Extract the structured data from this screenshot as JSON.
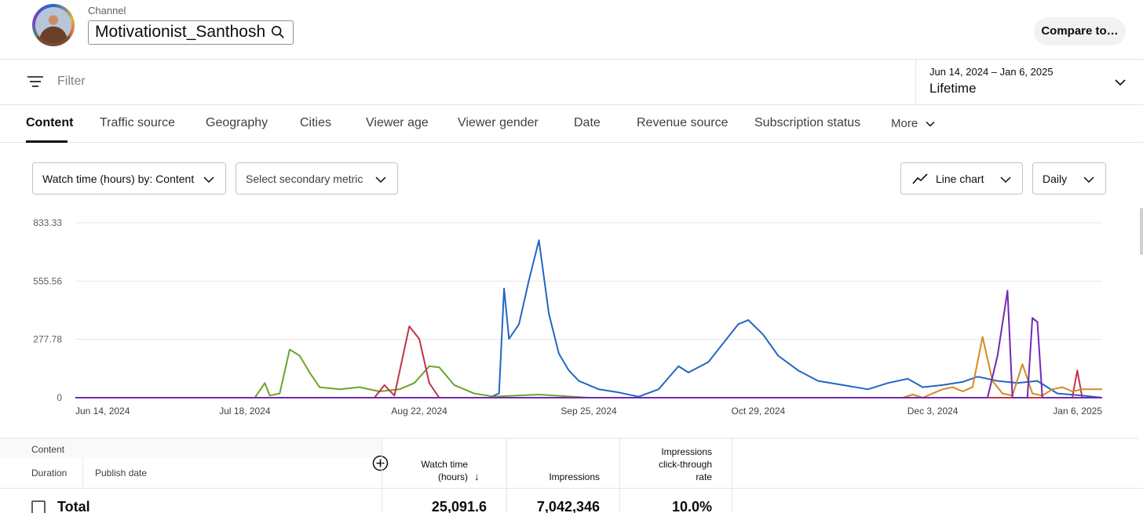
{
  "channel": {
    "label": "Channel",
    "name": "Motivationist_Santhosh"
  },
  "compare_button": "Compare to…",
  "filter": {
    "placeholder": "Filter"
  },
  "date_picker": {
    "range": "Jun 14, 2024 – Jan 6, 2025",
    "period": "Lifetime"
  },
  "tabs": [
    {
      "label": "Content",
      "active": true
    },
    {
      "label": "Traffic source"
    },
    {
      "label": "Geography"
    },
    {
      "label": "Cities"
    },
    {
      "label": "Viewer age"
    },
    {
      "label": "Viewer gender"
    },
    {
      "label": "Date"
    },
    {
      "label": "Revenue source"
    },
    {
      "label": "Subscription status"
    },
    {
      "label": "More"
    }
  ],
  "controls": {
    "primary_metric": "Watch time (hours) by: Content",
    "secondary_metric": "Select secondary metric",
    "chart_type": "Line chart",
    "granularity": "Daily"
  },
  "colors": {
    "blue": "#2466c2",
    "green": "#6aa52b",
    "red": "#c2334a",
    "orange": "#d48a22",
    "purple": "#7428b3",
    "grid": "#e5e5e5"
  },
  "chart_data": {
    "type": "line",
    "ylim": [
      0,
      833.33
    ],
    "yticks": [
      "833.33",
      "555.56",
      "277.78",
      "0"
    ],
    "ytick_values": [
      833.33,
      555.56,
      277.78,
      0
    ],
    "xticks": [
      "Jun 14, 2024",
      "Jul 18, 2024",
      "Aug 22, 2024",
      "Sep 25, 2024",
      "Oct 29, 2024",
      "Dec 3, 2024",
      "Jan 6, 2025"
    ],
    "x_start": "Jun 14, 2024",
    "x_end": "Jan 6, 2025",
    "grid": true,
    "series": [
      {
        "color": "blue",
        "points": [
          [
            "Jun 14, 2024",
            0
          ],
          [
            "Sep 5, 2024",
            0
          ],
          [
            "Sep 7, 2024",
            20
          ],
          [
            "Sep 8, 2024",
            520
          ],
          [
            "Sep 9, 2024",
            280
          ],
          [
            "Sep 11, 2024",
            350
          ],
          [
            "Sep 13, 2024",
            560
          ],
          [
            "Sep 15, 2024",
            750
          ],
          [
            "Sep 17, 2024",
            400
          ],
          [
            "Sep 19, 2024",
            210
          ],
          [
            "Sep 21, 2024",
            130
          ],
          [
            "Sep 23, 2024",
            80
          ],
          [
            "Sep 25, 2024",
            60
          ],
          [
            "Sep 27, 2024",
            40
          ],
          [
            "Oct 1, 2024",
            25
          ],
          [
            "Oct 5, 2024",
            5
          ],
          [
            "Oct 9, 2024",
            40
          ],
          [
            "Oct 13, 2024",
            150
          ],
          [
            "Oct 15, 2024",
            120
          ],
          [
            "Oct 19, 2024",
            170
          ],
          [
            "Oct 22, 2024",
            260
          ],
          [
            "Oct 25, 2024",
            350
          ],
          [
            "Oct 27, 2024",
            370
          ],
          [
            "Oct 30, 2024",
            300
          ],
          [
            "Nov 2, 2024",
            200
          ],
          [
            "Nov 6, 2024",
            130
          ],
          [
            "Nov 10, 2024",
            80
          ],
          [
            "Nov 15, 2024",
            60
          ],
          [
            "Nov 20, 2024",
            40
          ],
          [
            "Nov 24, 2024",
            70
          ],
          [
            "Nov 28, 2024",
            90
          ],
          [
            "Dec 1, 2024",
            50
          ],
          [
            "Dec 5, 2024",
            60
          ],
          [
            "Dec 9, 2024",
            75
          ],
          [
            "Dec 12, 2024",
            100
          ],
          [
            "Dec 16, 2024",
            80
          ],
          [
            "Dec 20, 2024",
            70
          ],
          [
            "Dec 24, 2024",
            80
          ],
          [
            "Dec 28, 2024",
            20
          ],
          [
            "Jan 2, 2025",
            10
          ],
          [
            "Jan 6, 2025",
            0
          ]
        ]
      },
      {
        "color": "green",
        "points": [
          [
            "Jun 14, 2024",
            0
          ],
          [
            "Jul 20, 2024",
            0
          ],
          [
            "Jul 22, 2024",
            70
          ],
          [
            "Jul 23, 2024",
            10
          ],
          [
            "Jul 25, 2024",
            20
          ],
          [
            "Jul 27, 2024",
            230
          ],
          [
            "Jul 29, 2024",
            200
          ],
          [
            "Jul 31, 2024",
            120
          ],
          [
            "Aug 2, 2024",
            50
          ],
          [
            "Aug 6, 2024",
            40
          ],
          [
            "Aug 10, 2024",
            50
          ],
          [
            "Aug 14, 2024",
            30
          ],
          [
            "Aug 18, 2024",
            40
          ],
          [
            "Aug 21, 2024",
            70
          ],
          [
            "Aug 24, 2024",
            150
          ],
          [
            "Aug 26, 2024",
            145
          ],
          [
            "Aug 29, 2024",
            60
          ],
          [
            "Sep 2, 2024",
            20
          ],
          [
            "Sep 6, 2024",
            5
          ],
          [
            "Sep 15, 2024",
            15
          ],
          [
            "Sep 25, 2024",
            0
          ],
          [
            "Jan 6, 2025",
            0
          ]
        ]
      },
      {
        "color": "red",
        "points": [
          [
            "Jun 14, 2024",
            0
          ],
          [
            "Aug 13, 2024",
            0
          ],
          [
            "Aug 15, 2024",
            60
          ],
          [
            "Aug 17, 2024",
            10
          ],
          [
            "Aug 20, 2024",
            340
          ],
          [
            "Aug 22, 2024",
            280
          ],
          [
            "Aug 24, 2024",
            70
          ],
          [
            "Aug 26, 2024",
            0
          ],
          [
            "Dec 31, 2024",
            0
          ],
          [
            "Jan 1, 2025",
            130
          ],
          [
            "Jan 2, 2025",
            0
          ],
          [
            "Jan 6, 2025",
            0
          ]
        ]
      },
      {
        "color": "orange",
        "points": [
          [
            "Jun 14, 2024",
            0
          ],
          [
            "Nov 27, 2024",
            0
          ],
          [
            "Nov 29, 2024",
            15
          ],
          [
            "Dec 1, 2024",
            0
          ],
          [
            "Dec 3, 2024",
            20
          ],
          [
            "Dec 5, 2024",
            40
          ],
          [
            "Dec 7, 2024",
            50
          ],
          [
            "Dec 9, 2024",
            30
          ],
          [
            "Dec 11, 2024",
            50
          ],
          [
            "Dec 13, 2024",
            290
          ],
          [
            "Dec 15, 2024",
            80
          ],
          [
            "Dec 17, 2024",
            20
          ],
          [
            "Dec 19, 2024",
            10
          ],
          [
            "Dec 21, 2024",
            160
          ],
          [
            "Dec 23, 2024",
            20
          ],
          [
            "Dec 25, 2024",
            10
          ],
          [
            "Dec 27, 2024",
            40
          ],
          [
            "Dec 29, 2024",
            50
          ],
          [
            "Dec 31, 2024",
            30
          ],
          [
            "Jan 2, 2025",
            40
          ],
          [
            "Jan 6, 2025",
            40
          ]
        ]
      },
      {
        "color": "purple",
        "points": [
          [
            "Jun 14, 2024",
            0
          ],
          [
            "Dec 14, 2024",
            0
          ],
          [
            "Dec 16, 2024",
            200
          ],
          [
            "Dec 18, 2024",
            510
          ],
          [
            "Dec 19, 2024",
            0
          ],
          [
            "Dec 22, 2024",
            0
          ],
          [
            "Dec 23, 2024",
            380
          ],
          [
            "Dec 24, 2024",
            360
          ],
          [
            "Dec 25, 2024",
            0
          ],
          [
            "Jan 6, 2025",
            0
          ]
        ]
      }
    ]
  },
  "table": {
    "content_header": "Content",
    "duration_header": "Duration",
    "publish_header": "Publish date",
    "watch_time_header_line1": "Watch time",
    "watch_time_header_line2": "(hours)",
    "watch_time_sort": "↓",
    "impressions_header": "Impressions",
    "ctr_header_line1": "Impressions",
    "ctr_header_line2": "click-through",
    "ctr_header_line3": "rate",
    "total_label": "Total",
    "total_watch_time": "25,091.6",
    "total_impressions": "7,042,346",
    "total_ctr": "10.0%"
  }
}
